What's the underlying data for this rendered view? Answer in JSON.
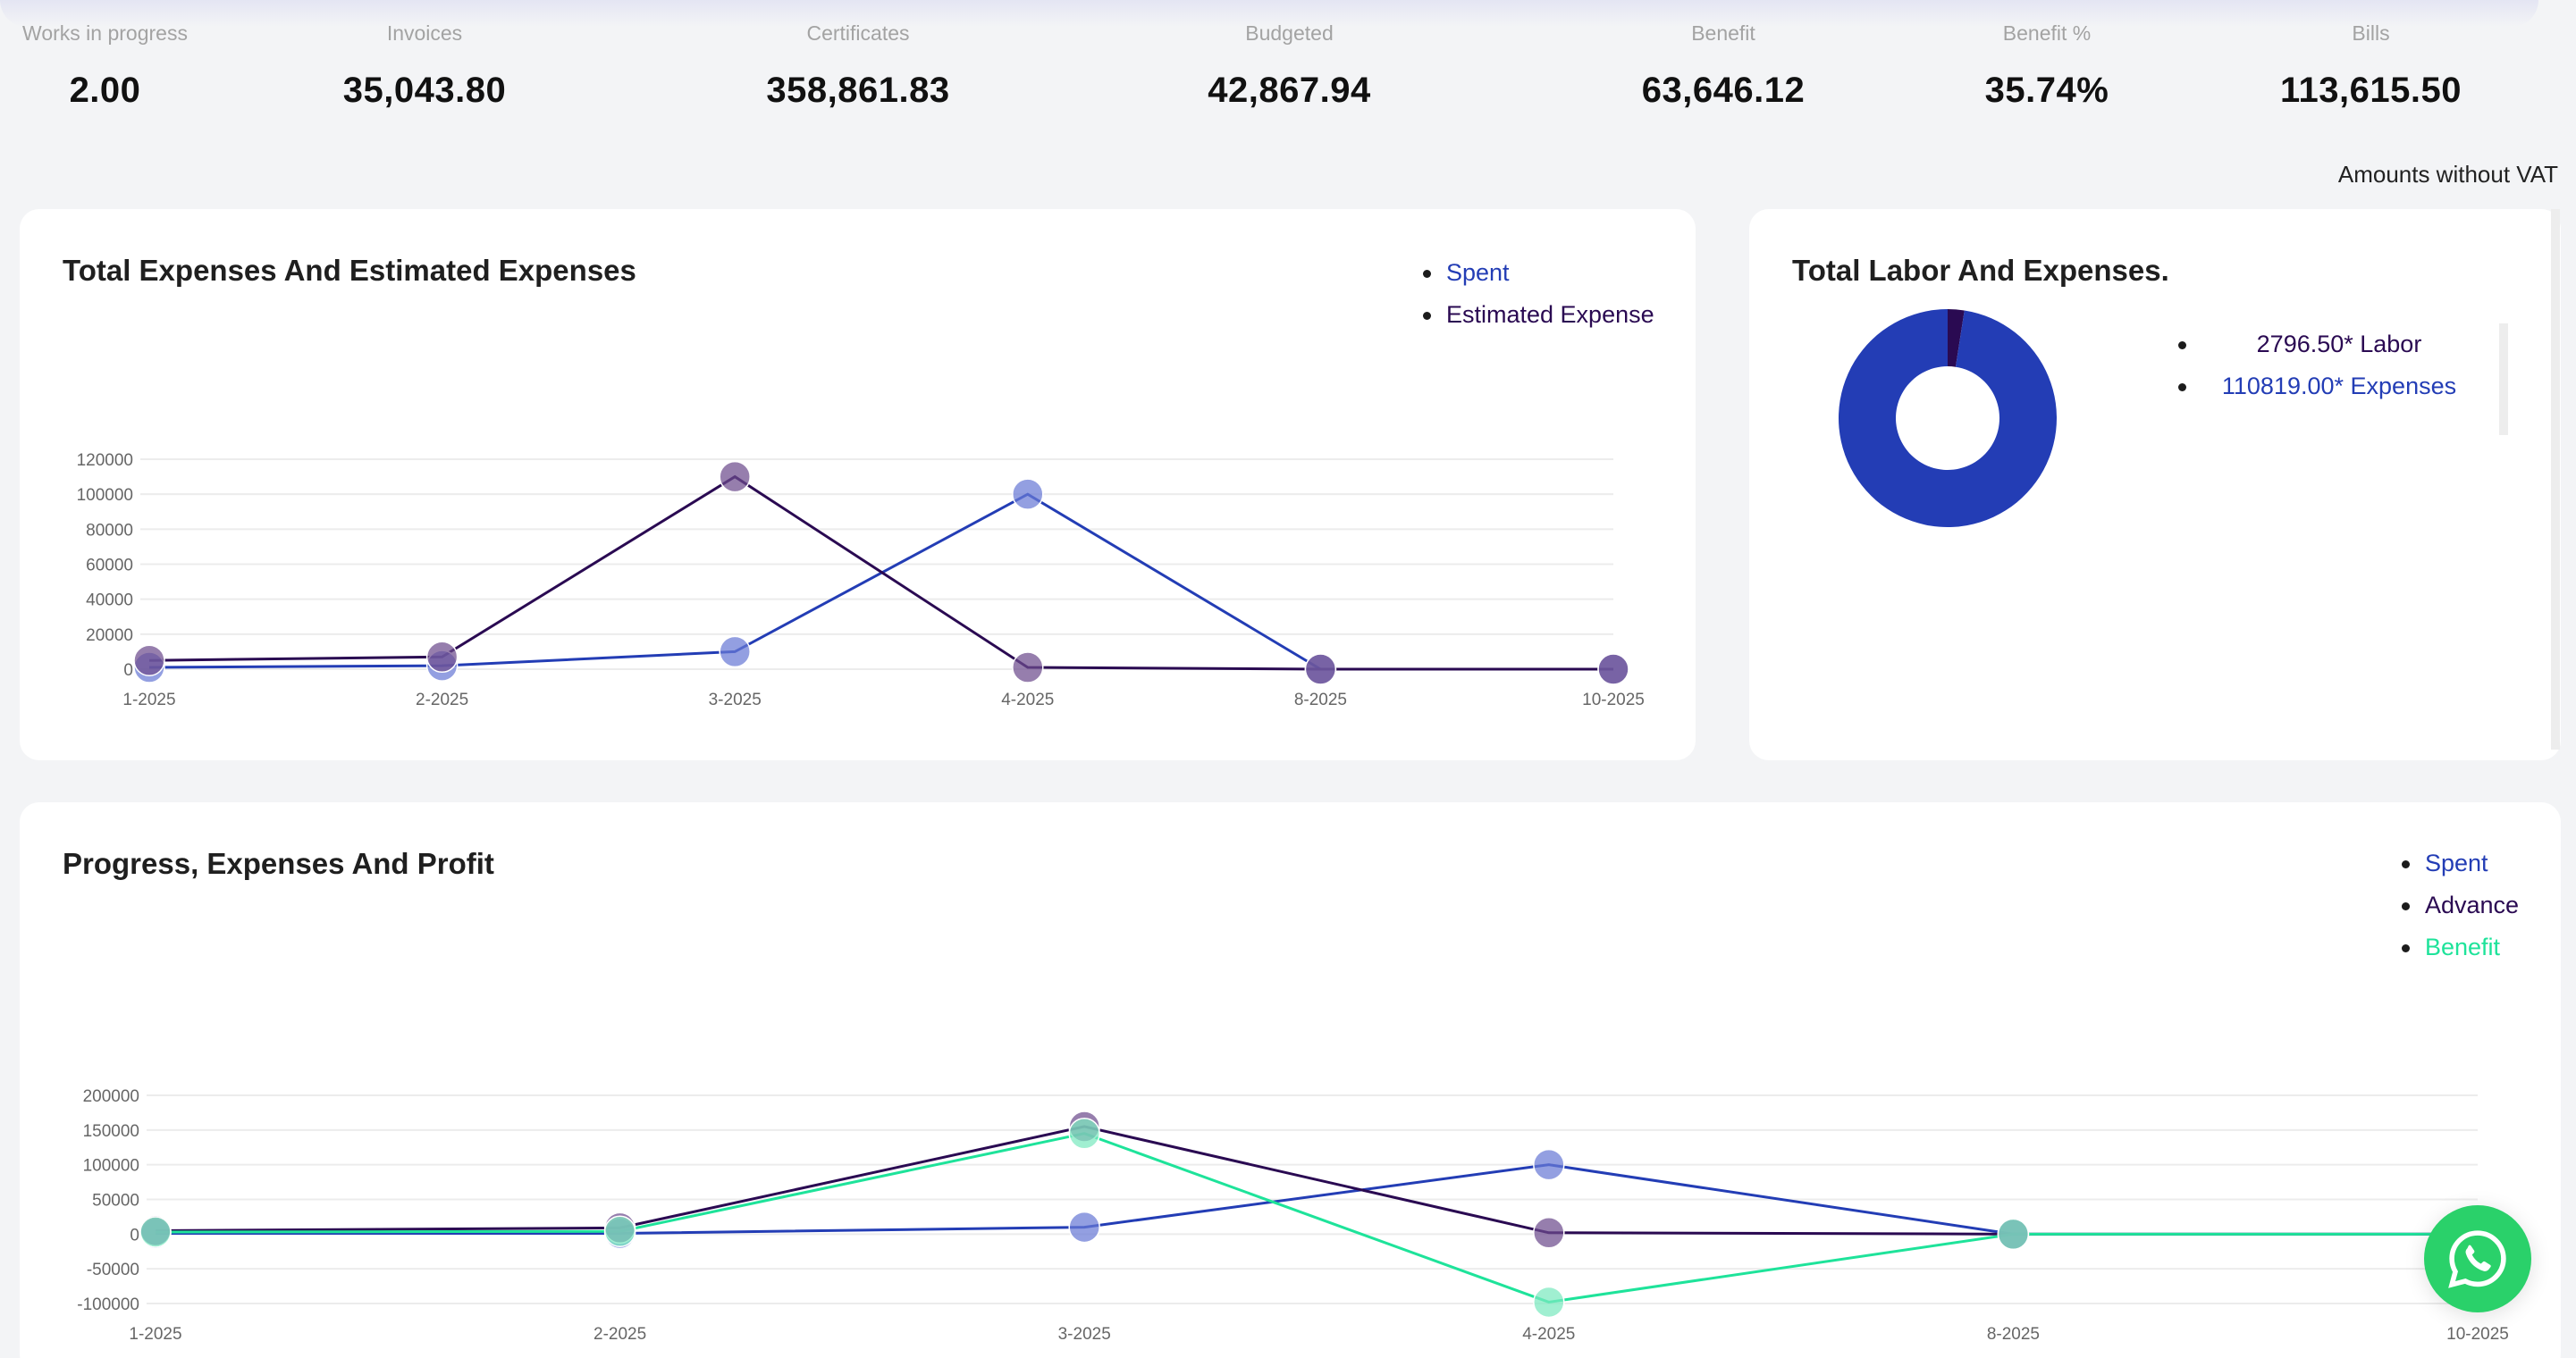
{
  "stats": [
    {
      "label": "Works in progress",
      "value": "2.00"
    },
    {
      "label": "Invoices",
      "value": "35,043.80"
    },
    {
      "label": "Certificates",
      "value": "358,861.83"
    },
    {
      "label": "Budgeted",
      "value": "42,867.94"
    },
    {
      "label": "Benefit",
      "value": "63,646.12"
    },
    {
      "label": "Benefit %",
      "value": "35.74%"
    },
    {
      "label": "Bills",
      "value": "113,615.50"
    }
  ],
  "vat_note": "Amounts without VAT",
  "colors": {
    "spent": "#233db5",
    "estimated": "#2a0a52",
    "advance": "#2a0a52",
    "benefit": "#1ee39a",
    "whatsapp": "#2ad16a"
  },
  "expenses_card": {
    "title": "Total Expenses And Estimated Expenses"
  },
  "labor_card": {
    "title": "Total Labor And Expenses.",
    "legend": [
      {
        "text": "2796.50* Labor",
        "color": "#2a0a52"
      },
      {
        "text": "110819.00* Expenses",
        "color": "#233db5"
      }
    ]
  },
  "progress_card": {
    "title": "Progress, Expenses And Profit"
  },
  "whatsapp": {
    "icon": "whatsapp-icon"
  },
  "chart_data": [
    {
      "type": "line",
      "title": "Total Expenses And Estimated Expenses",
      "categories": [
        "1-2025",
        "2-2025",
        "3-2025",
        "4-2025",
        "8-2025",
        "10-2025"
      ],
      "yticks": [
        "120000",
        "100000",
        "80000",
        "60000",
        "40000",
        "20000",
        "0"
      ],
      "ylim": [
        0,
        120000
      ],
      "grid": true,
      "legend_position": "top-right",
      "series": [
        {
          "name": "Spent",
          "values": [
            1000,
            2000,
            10000,
            100000,
            0,
            0
          ]
        },
        {
          "name": "Estimated Expense",
          "values": [
            5000,
            7000,
            110000,
            1000,
            0,
            0
          ]
        }
      ]
    },
    {
      "type": "pie",
      "title": "Total Labor And Expenses.",
      "labels": [
        "Labor",
        "Expenses"
      ],
      "values": [
        2796.5,
        110819.0
      ],
      "donut": true
    },
    {
      "type": "line",
      "title": "Progress, Expenses And Profit",
      "categories": [
        "1-2025",
        "2-2025",
        "3-2025",
        "4-2025",
        "8-2025",
        "10-2025"
      ],
      "yticks": [
        "200000",
        "150000",
        "100000",
        "50000",
        "0",
        "-50000",
        "-100000"
      ],
      "ylim": [
        -100000,
        200000
      ],
      "grid": true,
      "legend_position": "top-right",
      "series": [
        {
          "name": "Spent",
          "values": [
            1000,
            1000,
            10000,
            100000,
            0,
            0
          ]
        },
        {
          "name": "Advance",
          "values": [
            5000,
            9000,
            155000,
            2000,
            0,
            0
          ]
        },
        {
          "name": "Benefit",
          "values": [
            3000,
            4000,
            145000,
            -98000,
            0,
            0
          ]
        }
      ]
    }
  ]
}
